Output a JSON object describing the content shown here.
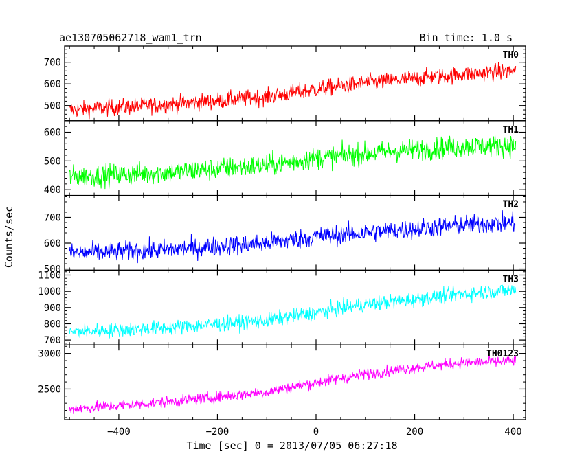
{
  "chart_data": {
    "type": "line",
    "title": "ae130705062718_wam1_trn",
    "subtitle": "Bin time: 1.0 s",
    "xlabel": "Time [sec] 0 = 2013/07/05 06:27:18",
    "ylabel": "Counts/sec",
    "xlim": [
      -510,
      425
    ],
    "xticks": [
      -400,
      -200,
      0,
      200,
      400
    ],
    "grid": false,
    "data_x_range": [
      -500,
      405
    ],
    "panels": [
      {
        "name": "TH0",
        "color": "#ff0000",
        "ylim": [
          430,
          775
        ],
        "yticks": [
          500,
          600,
          700
        ],
        "trend": {
          "x": [
            -500,
            -300,
            -100,
            0,
            100,
            200,
            300,
            405
          ],
          "y": [
            480,
            505,
            540,
            575,
            605,
            625,
            645,
            660
          ]
        },
        "noise": 27
      },
      {
        "name": "TH1",
        "color": "#00ff00",
        "ylim": [
          380,
          640
        ],
        "yticks": [
          400,
          500,
          600
        ],
        "trend": {
          "x": [
            -500,
            -300,
            -100,
            0,
            100,
            200,
            300,
            405
          ],
          "y": [
            445,
            460,
            485,
            510,
            525,
            540,
            550,
            555
          ]
        },
        "noise": 27
      },
      {
        "name": "TH2",
        "color": "#0000ff",
        "ylim": [
          495,
          785
        ],
        "yticks": [
          500,
          600,
          700
        ],
        "trend": {
          "x": [
            -500,
            -300,
            -100,
            0,
            100,
            200,
            300,
            405
          ],
          "y": [
            560,
            575,
            600,
            625,
            640,
            655,
            670,
            680
          ]
        },
        "noise": 27
      },
      {
        "name": "TH3",
        "color": "#00ffff",
        "ylim": [
          670,
          1130
        ],
        "yticks": [
          700,
          800,
          900,
          1000,
          1100
        ],
        "trend": {
          "x": [
            -500,
            -300,
            -100,
            0,
            100,
            200,
            300,
            405
          ],
          "y": [
            750,
            775,
            820,
            870,
            920,
            950,
            985,
            1010
          ]
        },
        "noise": 32
      },
      {
        "name": "TH0123",
        "color": "#ff00ff",
        "ylim": [
          2070,
          3120
        ],
        "yticks": [
          2500,
          3000
        ],
        "trend": {
          "x": [
            -500,
            -300,
            -100,
            0,
            100,
            200,
            300,
            405
          ],
          "y": [
            2220,
            2320,
            2460,
            2590,
            2710,
            2800,
            2870,
            2890
          ]
        },
        "noise": 55
      }
    ]
  }
}
